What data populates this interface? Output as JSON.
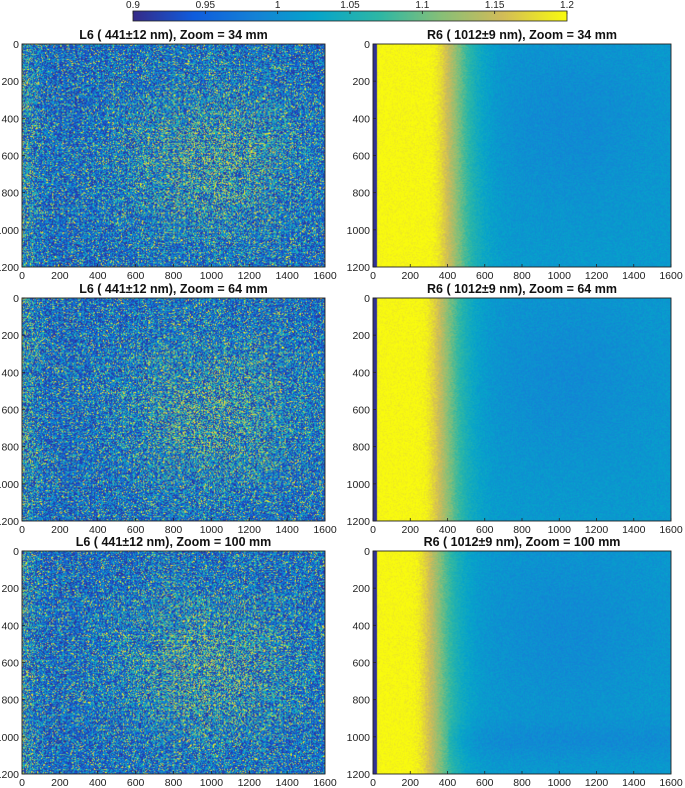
{
  "colorbar": {
    "colormap": "parula",
    "range": [
      0.9,
      1.2
    ],
    "ticks": [
      0.9,
      0.95,
      1,
      1.05,
      1.1,
      1.15,
      1.2
    ],
    "tick_labels": [
      "0.9",
      "0.95",
      "1",
      "1.05",
      "1.1",
      "1.15",
      "1.2"
    ],
    "location": "top"
  },
  "chart_data": [
    {
      "type": "heatmap",
      "title": "L6 ( 441±12 nm), Zoom = 34 mm",
      "x_ticks": [
        0,
        200,
        400,
        600,
        800,
        1000,
        1200,
        1400,
        1600
      ],
      "y_ticks": [
        0,
        200,
        400,
        600,
        800,
        1000,
        1200
      ],
      "xlim": [
        0,
        1600
      ],
      "ylim": [
        0,
        1200
      ],
      "y_reversed": true,
      "pattern": "noisy-grid",
      "value_range_shown": [
        0.9,
        1.2
      ]
    },
    {
      "type": "heatmap",
      "title": "R6 ( 1012±9 nm), Zoom = 34 mm",
      "x_ticks": [
        0,
        200,
        400,
        600,
        800,
        1000,
        1200,
        1400,
        1600
      ],
      "y_ticks": [
        0,
        200,
        400,
        600,
        800,
        1000,
        1200
      ],
      "xlim": [
        0,
        1600
      ],
      "ylim": [
        0,
        1200
      ],
      "y_reversed": true,
      "pattern": "smooth-gradient",
      "value_range_shown": [
        0.9,
        1.2
      ]
    },
    {
      "type": "heatmap",
      "title": "L6 ( 441±12 nm), Zoom = 64 mm",
      "x_ticks": [
        0,
        200,
        400,
        600,
        800,
        1000,
        1200,
        1400,
        1600
      ],
      "y_ticks": [
        0,
        200,
        400,
        600,
        800,
        1000,
        1200
      ],
      "xlim": [
        0,
        1600
      ],
      "ylim": [
        0,
        1200
      ],
      "y_reversed": true,
      "pattern": "noisy-grid",
      "value_range_shown": [
        0.9,
        1.2
      ]
    },
    {
      "type": "heatmap",
      "title": "R6 ( 1012±9 nm), Zoom = 64 mm",
      "x_ticks": [
        0,
        200,
        400,
        600,
        800,
        1000,
        1200,
        1400,
        1600
      ],
      "y_ticks": [
        0,
        200,
        400,
        600,
        800,
        1000,
        1200
      ],
      "xlim": [
        0,
        1600
      ],
      "ylim": [
        0,
        1200
      ],
      "y_reversed": true,
      "pattern": "smooth-gradient",
      "value_range_shown": [
        0.9,
        1.2
      ]
    },
    {
      "type": "heatmap",
      "title": "L6 ( 441±12 nm), Zoom = 100 mm",
      "x_ticks": [
        0,
        200,
        400,
        600,
        800,
        1000,
        1200,
        1400,
        1600
      ],
      "y_ticks": [
        0,
        200,
        400,
        600,
        800,
        1000,
        1200
      ],
      "xlim": [
        0,
        1600
      ],
      "ylim": [
        0,
        1200
      ],
      "y_reversed": true,
      "pattern": "noisy-grid",
      "value_range_shown": [
        0.9,
        1.2
      ]
    },
    {
      "type": "heatmap",
      "title": "R6 ( 1012±9 nm), Zoom = 100 mm",
      "x_ticks": [
        0,
        200,
        400,
        600,
        800,
        1000,
        1200,
        1400,
        1600
      ],
      "y_ticks": [
        0,
        200,
        400,
        600,
        800,
        1000,
        1200
      ],
      "xlim": [
        0,
        1600
      ],
      "ylim": [
        0,
        1200
      ],
      "y_reversed": true,
      "pattern": "smooth-gradient",
      "value_range_shown": [
        0.9,
        1.2
      ]
    }
  ]
}
